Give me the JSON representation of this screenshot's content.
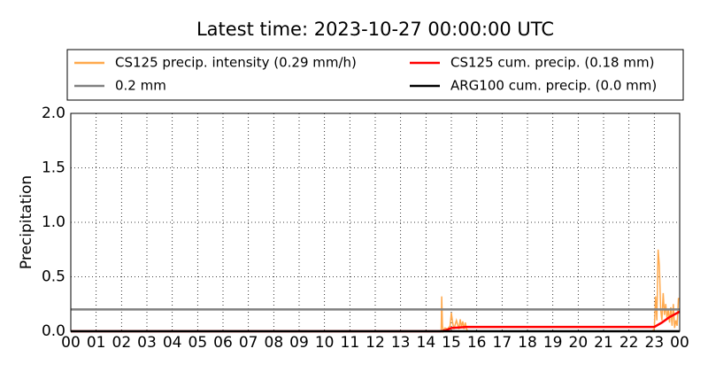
{
  "chart_data": {
    "type": "line",
    "title": "Latest time: 2023-10-27 00:00:00 UTC",
    "y_label": "Precipitation",
    "xlim": [
      0,
      24
    ],
    "xticks": [
      {
        "value": 0,
        "label": "00"
      },
      {
        "value": 1,
        "label": "01"
      },
      {
        "value": 2,
        "label": "02"
      },
      {
        "value": 3,
        "label": "03"
      },
      {
        "value": 4,
        "label": "04"
      },
      {
        "value": 5,
        "label": "05"
      },
      {
        "value": 6,
        "label": "06"
      },
      {
        "value": 7,
        "label": "07"
      },
      {
        "value": 8,
        "label": "08"
      },
      {
        "value": 9,
        "label": "09"
      },
      {
        "value": 10,
        "label": "10"
      },
      {
        "value": 11,
        "label": "11"
      },
      {
        "value": 12,
        "label": "12"
      },
      {
        "value": 13,
        "label": "13"
      },
      {
        "value": 14,
        "label": "14"
      },
      {
        "value": 15,
        "label": "15"
      },
      {
        "value": 16,
        "label": "16"
      },
      {
        "value": 17,
        "label": "17"
      },
      {
        "value": 18,
        "label": "18"
      },
      {
        "value": 19,
        "label": "19"
      },
      {
        "value": 20,
        "label": "20"
      },
      {
        "value": 21,
        "label": "21"
      },
      {
        "value": 22,
        "label": "22"
      },
      {
        "value": 23,
        "label": "23"
      },
      {
        "value": 24,
        "label": "00"
      }
    ],
    "ylim": [
      0,
      2
    ],
    "yticks": [
      {
        "value": 0,
        "label": "0.0"
      },
      0.5,
      {
        "value": 1,
        "label": "1.0"
      },
      1.5,
      {
        "value": 2,
        "label": "2.0"
      }
    ],
    "grid": true,
    "series": [
      {
        "name": "CS125 precip. intensity (0.29 mm/h)",
        "color": "#ffa94d",
        "x": [
          0,
          14.6,
          14.62,
          14.65,
          14.68,
          14.75,
          14.85,
          14.95,
          15.0,
          15.05,
          15.1,
          15.2,
          15.3,
          15.35,
          15.4,
          15.45,
          15.5,
          15.55,
          15.6,
          15.65,
          22.9,
          23.0,
          23.05,
          23.1,
          23.15,
          23.2,
          23.25,
          23.3,
          23.35,
          23.4,
          23.45,
          23.5,
          23.55,
          23.6,
          23.65,
          23.7,
          23.75,
          23.8,
          23.85,
          23.9,
          23.95,
          24.0
        ],
        "values": [
          0,
          0,
          0.32,
          0.05,
          0,
          0.03,
          0.02,
          0.05,
          0.17,
          0.08,
          0.02,
          0.1,
          0.02,
          0.11,
          0.04,
          0.09,
          0.02,
          0.08,
          0.02,
          0,
          0,
          0.02,
          0.32,
          0.1,
          0.75,
          0.6,
          0.2,
          0.1,
          0.35,
          0.15,
          0.25,
          0.12,
          0.2,
          0.08,
          0.22,
          0.05,
          0.25,
          0.03,
          0.1,
          0.05,
          0.3,
          0.3
        ]
      },
      {
        "name": "0.2 mm",
        "color": "#808080",
        "x": [
          0,
          24
        ],
        "values": [
          0.2,
          0.2
        ]
      },
      {
        "name": "CS125 cum. precip. (0.18 mm)",
        "color": "#ff0000",
        "x": [
          0,
          14.6,
          14.8,
          15.0,
          15.3,
          15.6,
          23.0,
          23.3,
          23.6,
          24.0
        ],
        "values": [
          0,
          0,
          0.01,
          0.03,
          0.035,
          0.04,
          0.04,
          0.08,
          0.13,
          0.18
        ]
      },
      {
        "name": "ARG100 cum. precip. (0.0 mm)",
        "color": "#000000",
        "x": [
          0,
          24
        ],
        "values": [
          0,
          0
        ]
      }
    ]
  }
}
